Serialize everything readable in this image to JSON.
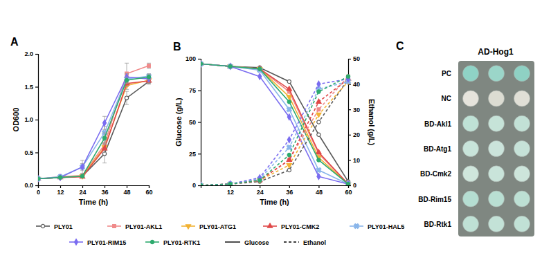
{
  "chart_data": [
    {
      "type": "line",
      "title": "A",
      "xlabel": "Time (h)",
      "ylabel": "OD600",
      "x": [
        0,
        12,
        24,
        36,
        48,
        60
      ],
      "xlim": [
        0,
        60
      ],
      "xticks": [
        0,
        12,
        24,
        36,
        48,
        60
      ],
      "ylim": [
        0,
        2
      ],
      "yticks": [
        {
          "value": 0,
          "label": "0.0"
        },
        0.5,
        {
          "value": 1,
          "label": "1.0"
        },
        1.5,
        {
          "value": 2,
          "label": "2.0"
        }
      ],
      "series": [
        {
          "name": "PLY01",
          "color": "#595959",
          "marker": "circle-open",
          "values": [
            0.1,
            0.12,
            0.14,
            0.48,
            1.33,
            1.58
          ],
          "errors": [
            0.01,
            0.01,
            0.02,
            0.14,
            0.1,
            0.04
          ]
        },
        {
          "name": "PLY01-AKL1",
          "color": "#f08a8a",
          "marker": "square",
          "values": [
            0.1,
            0.13,
            0.15,
            0.62,
            1.7,
            1.82
          ],
          "errors": [
            0.01,
            0.01,
            0.02,
            0.06,
            0.16,
            0.04
          ]
        },
        {
          "name": "PLY01-ATG1",
          "color": "#f2b233",
          "marker": "triangle-down",
          "values": [
            0.1,
            0.12,
            0.14,
            0.58,
            1.52,
            1.6
          ],
          "errors": [
            0.01,
            0.01,
            0.02,
            0.08,
            0.06,
            0.04
          ]
        },
        {
          "name": "PLY01-CMK2",
          "color": "#e04848",
          "marker": "triangle",
          "values": [
            0.1,
            0.12,
            0.13,
            0.56,
            1.55,
            1.59
          ],
          "errors": [
            0.01,
            0.01,
            0.02,
            0.06,
            0.05,
            0.04
          ]
        },
        {
          "name": "PLY01-HAL5",
          "color": "#8ab6ea",
          "marker": "x",
          "values": [
            0.1,
            0.13,
            0.28,
            0.8,
            1.62,
            1.66
          ],
          "errors": [
            0.01,
            0.01,
            0.1,
            0.1,
            0.06,
            0.04
          ]
        },
        {
          "name": "PLY01-RIM15",
          "color": "#7a6cf0",
          "marker": "diamond",
          "values": [
            0.1,
            0.12,
            0.28,
            0.95,
            1.65,
            1.62
          ],
          "errors": [
            0.01,
            0.01,
            0.05,
            0.1,
            0.05,
            0.04
          ]
        },
        {
          "name": "PLY01-RTK1",
          "color": "#2eaa6e",
          "marker": "circle",
          "values": [
            0.1,
            0.12,
            0.14,
            0.72,
            1.6,
            1.65
          ],
          "errors": [
            0.01,
            0.01,
            0.02,
            0.08,
            0.05,
            0.04
          ]
        }
      ]
    },
    {
      "type": "line",
      "title": "B",
      "xlabel": "Time (h)",
      "ylabel": "Glucose (g/L)",
      "y2label": "Ethanol (g/L)",
      "x": [
        0,
        12,
        24,
        36,
        48,
        60
      ],
      "xlim": [
        0,
        60
      ],
      "xticks": [
        12,
        24,
        36,
        48,
        60
      ],
      "ylim": [
        0,
        100
      ],
      "yticks": [
        0,
        25,
        50,
        75,
        100
      ],
      "y2lim": [
        0,
        50
      ],
      "y2ticks": [
        0,
        10,
        20,
        30,
        40,
        50
      ],
      "series": [
        {
          "color": "#595959",
          "marker": "circle-open",
          "line_style": "solid",
          "values": [
            96,
            94,
            93,
            82,
            40,
            3
          ]
        },
        {
          "color": "#f08a8a",
          "marker": "square",
          "line_style": "solid",
          "values": [
            96,
            94,
            92,
            74,
            25,
            1
          ]
        },
        {
          "color": "#f2b233",
          "marker": "triangle-down",
          "line_style": "solid",
          "values": [
            96,
            94,
            92,
            70,
            22,
            1
          ]
        },
        {
          "color": "#e04848",
          "marker": "triangle",
          "line_style": "solid",
          "values": [
            96,
            94,
            92,
            76,
            26,
            1
          ]
        },
        {
          "color": "#8ab6ea",
          "marker": "x",
          "line_style": "solid",
          "values": [
            96,
            94,
            91,
            60,
            12,
            1
          ]
        },
        {
          "color": "#7a6cf0",
          "marker": "diamond",
          "line_style": "solid",
          "values": [
            96,
            94,
            86,
            54,
            7,
            1
          ]
        },
        {
          "color": "#2eaa6e",
          "marker": "circle",
          "line_style": "solid",
          "values": [
            96,
            94,
            92,
            66,
            20,
            1
          ]
        },
        {
          "color": "#595959",
          "marker": "circle-open",
          "line_style": "dashed",
          "axis": "y2",
          "values": [
            0,
            0.5,
            1.5,
            6,
            25,
            42
          ]
        },
        {
          "color": "#f08a8a",
          "marker": "square",
          "line_style": "dashed",
          "axis": "y2",
          "values": [
            0,
            0.5,
            2,
            10,
            30,
            43
          ]
        },
        {
          "color": "#f2b233",
          "marker": "triangle-down",
          "line_style": "dashed",
          "axis": "y2",
          "values": [
            0,
            0.5,
            2,
            8,
            28,
            41
          ]
        },
        {
          "color": "#e04848",
          "marker": "triangle",
          "line_style": "dashed",
          "axis": "y2",
          "values": [
            0,
            0.5,
            2,
            10,
            33,
            42
          ]
        },
        {
          "color": "#8ab6ea",
          "marker": "x",
          "line_style": "dashed",
          "axis": "y2",
          "values": [
            0,
            0.5,
            2.5,
            15,
            38,
            41
          ]
        },
        {
          "color": "#7a6cf0",
          "marker": "diamond",
          "line_style": "dashed",
          "axis": "y2",
          "values": [
            0,
            0.5,
            3,
            18,
            40,
            42
          ]
        },
        {
          "color": "#2eaa6e",
          "marker": "circle",
          "line_style": "dashed",
          "axis": "y2",
          "values": [
            0,
            0.5,
            2,
            12,
            37,
            43
          ]
        }
      ]
    }
  ],
  "line_legend": [
    {
      "name": "Glucose",
      "line_style": "solid"
    },
    {
      "name": "Ethanol",
      "line_style": "dashed"
    }
  ],
  "panel_c": {
    "title": "C",
    "column_label": "AD-Hog1",
    "rows": [
      {
        "label": "PC",
        "colors": [
          "#8fd3c6",
          "#9bd6c9",
          "#8fd1c4"
        ]
      },
      {
        "label": "NC",
        "colors": [
          "#e6e4dc",
          "#dcdcd2",
          "#e0dfd6"
        ]
      },
      {
        "label": "BD-Akl1",
        "colors": [
          "#bfe2d6",
          "#c6e3d8",
          "#c2e1d6"
        ]
      },
      {
        "label": "BD-Atg1",
        "colors": [
          "#c8e4da",
          "#cbe4db",
          "#c6e2d8"
        ]
      },
      {
        "label": "BD-Cmk2",
        "colors": [
          "#cfe6dc",
          "#c9e4da",
          "#cde5db"
        ]
      },
      {
        "label": "BD-Rim15",
        "colors": [
          "#b5ded2",
          "#b9dfd3",
          "#bde0d4"
        ]
      },
      {
        "label": "BD-Rtk1",
        "colors": [
          "#bfe1d5",
          "#c3e2d7",
          "#c1e1d6"
        ]
      }
    ]
  }
}
